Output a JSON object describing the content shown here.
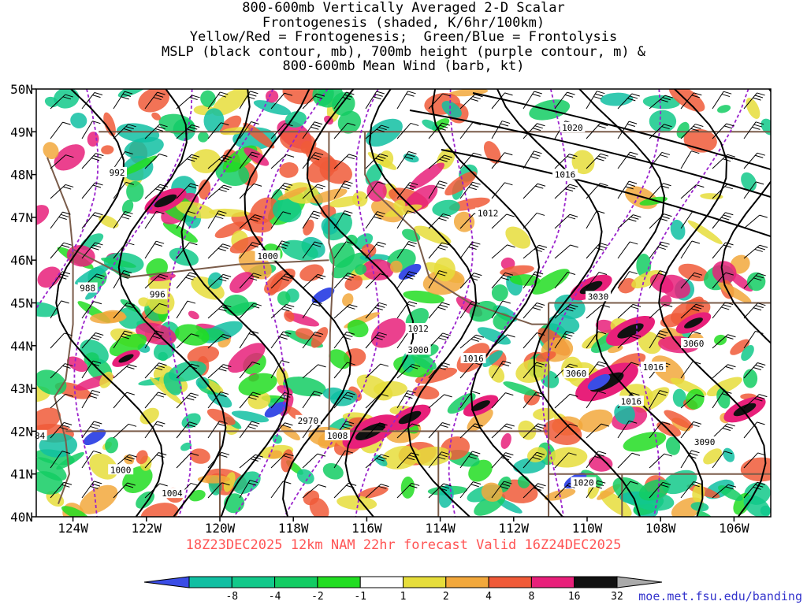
{
  "title_lines": [
    "800-600mb Vertically Averaged 2-D Scalar",
    "Frontogenesis (shaded, K/6hr/100km)",
    "Yellow/Red = Frontogenesis;  Green/Blue = Frontolysis",
    "MSLP (black contour, mb), 700mb height (purple contour, m) &",
    "800-600mb Mean Wind (barb, kt)"
  ],
  "valid_text": "18Z23DEC2025 12km NAM 22hr forecast Valid 16Z24DEC2025",
  "credit": "moe.met.fsu.edu/banding",
  "lat_labels": [
    "50N",
    "49N",
    "48N",
    "47N",
    "46N",
    "45N",
    "44N",
    "43N",
    "42N",
    "41N",
    "40N"
  ],
  "lon_labels": [
    "124W",
    "122W",
    "120W",
    "118W",
    "116W",
    "114W",
    "112W",
    "110W",
    "108W",
    "106W"
  ],
  "map_extent": {
    "lon_min": -125,
    "lon_max": -105,
    "lat_min": 40,
    "lat_max": 50
  },
  "colorbar": {
    "ticks": [
      "-8",
      "-4",
      "-2",
      "-1",
      "1",
      "2",
      "4",
      "8",
      "16",
      "32"
    ],
    "colors": [
      "#3a4de6",
      "#11bfa2",
      "#12c98a",
      "#13cc63",
      "#22dd22",
      "#ffffff",
      "#e6dd3b",
      "#f2a83c",
      "#f05a38",
      "#e8207a",
      "#111111",
      "#aaaaaa"
    ]
  },
  "mslp_labels": [
    {
      "text": "992",
      "lon": -122.8,
      "lat": 48.05
    },
    {
      "text": "1000",
      "lon": -118.7,
      "lat": 46.1
    },
    {
      "text": "988",
      "lon": -123.6,
      "lat": 45.35
    },
    {
      "text": "996",
      "lon": -121.7,
      "lat": 45.2
    },
    {
      "text": "1012",
      "lon": -112.7,
      "lat": 47.1
    },
    {
      "text": "1016",
      "lon": -110.6,
      "lat": 48.0
    },
    {
      "text": "1020",
      "lon": -110.4,
      "lat": 49.1
    },
    {
      "text": "1012",
      "lon": -114.6,
      "lat": 44.4
    },
    {
      "text": "1016",
      "lon": -113.1,
      "lat": 43.7
    },
    {
      "text": "1016",
      "lon": -108.2,
      "lat": 43.5
    },
    {
      "text": "1016",
      "lon": -108.8,
      "lat": 42.7
    },
    {
      "text": "1008",
      "lon": -116.8,
      "lat": 41.9
    },
    {
      "text": "1000",
      "lon": -122.7,
      "lat": 41.1
    },
    {
      "text": "1004",
      "lon": -121.3,
      "lat": 40.55
    },
    {
      "text": "1020",
      "lon": -110.1,
      "lat": 40.8
    },
    {
      "text": "84",
      "lon": -124.9,
      "lat": 41.9
    }
  ],
  "height_labels": [
    {
      "text": "3030",
      "lon": -109.7,
      "lat": 45.15
    },
    {
      "text": "3060",
      "lon": -107.1,
      "lat": 44.05
    },
    {
      "text": "3000",
      "lon": -114.6,
      "lat": 43.9
    },
    {
      "text": "3060",
      "lon": -110.3,
      "lat": 43.35
    },
    {
      "text": "2970",
      "lon": -117.6,
      "lat": 42.25
    },
    {
      "text": "3090",
      "lon": -106.8,
      "lat": 41.75
    }
  ]
}
